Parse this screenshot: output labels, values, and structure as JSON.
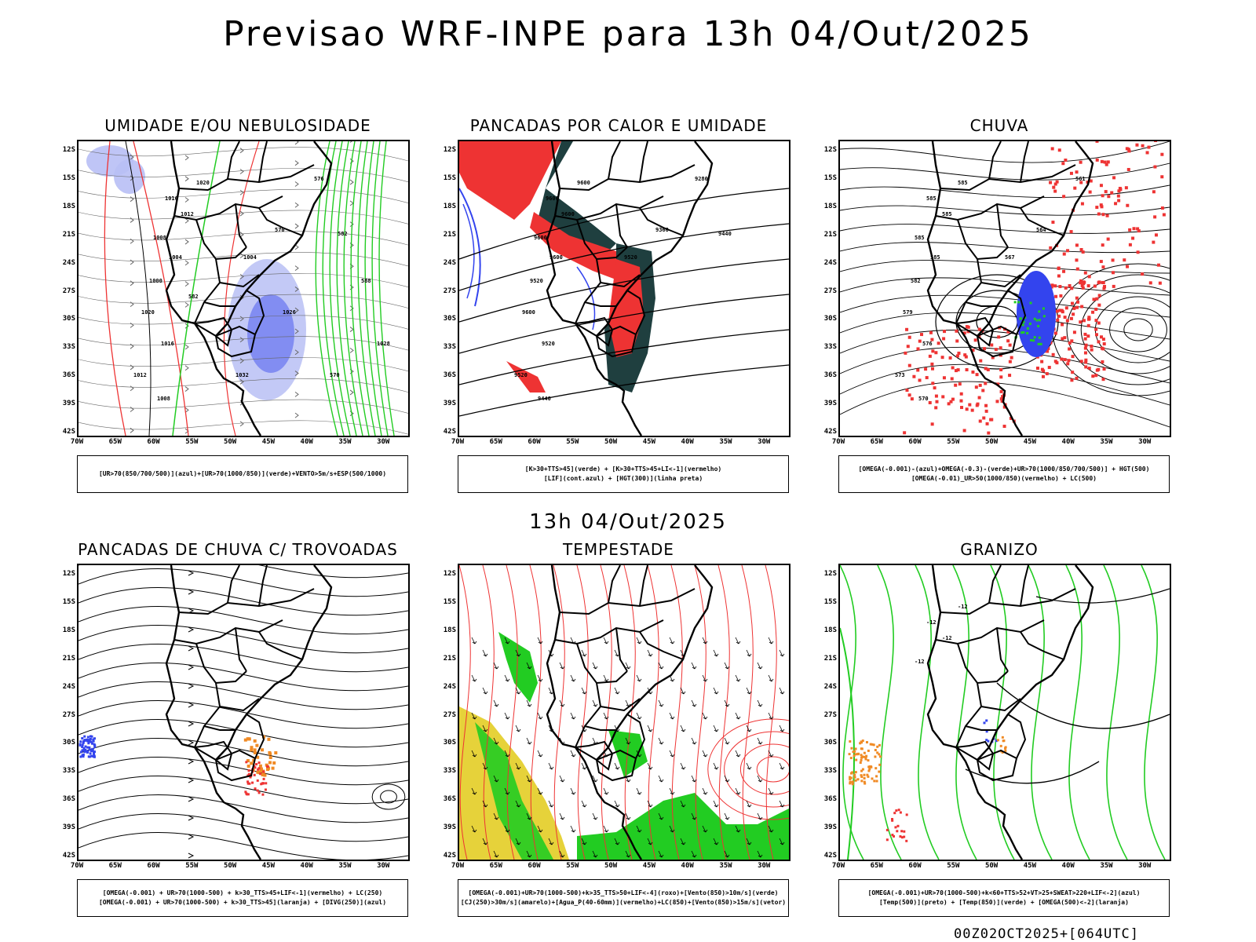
{
  "title": "Previsao WRF-INPE  para 13h 04/Out/2025",
  "mid_title": "13h 04/Out/2025",
  "footer": "00Z02OCT2025+[064UTC]",
  "lat_labels": [
    "12S",
    "15S",
    "18S",
    "21S",
    "24S",
    "27S",
    "30S",
    "33S",
    "36S",
    "39S",
    "42S"
  ],
  "lon_labels": [
    "70W",
    "65W",
    "60W",
    "55W",
    "50W",
    "45W",
    "40W",
    "35W",
    "30W"
  ],
  "panels": [
    {
      "title": "UMIDADE E/OU NEBULOSIDADE",
      "legend": [
        "[UR>70(850/700/500)](azul)+[UR>70(1000/850)](verde)+VENTO>5m/s+ESP(500/1000)"
      ],
      "contours": [
        "1020",
        "1016",
        "1012",
        "1008",
        "1004",
        "1000",
        "1020",
        "1016",
        "1012",
        "1008",
        "1004",
        "570",
        "576",
        "582",
        "588",
        "1028",
        "1026",
        "1032",
        "570",
        "582"
      ]
    },
    {
      "title": "PANCADAS POR CALOR E UMIDADE",
      "legend": [
        "[K>30+TTS>45](verde) + [K>30+TTS>45+LI<-1](vermelho)",
        "[LIF](cont.azul) + [HGT(300)](linha preta)"
      ],
      "contours": [
        "9600",
        "9600",
        "9600",
        "9600",
        "9600",
        "9520",
        "9600",
        "9520",
        "9520",
        "9440",
        "9520",
        "9360",
        "9280",
        "9440"
      ]
    },
    {
      "title": "CHUVA",
      "legend": [
        "[OMEGA(-0.001)-(azul)+OMEGA(-0.3)-(verde)+UR>70(1000/850/700/500)] + HGT(500)",
        "[OMEGA(-0.01)_UR>50(1000/850)(vermelho) + LC(500)"
      ],
      "contours": [
        "585",
        "585",
        "585",
        "585",
        "585",
        "582",
        "579",
        "576",
        "573",
        "570",
        "567",
        "564",
        "561"
      ]
    },
    {
      "title": "PANCADAS DE CHUVA C/ TROVOADAS",
      "legend": [
        "[OMEGA(-0.001) + UR>70(1000-500) + k>30_TTS>45+LIF<-1](vermelho) + LC(250)",
        "[OMEGA(-0.001) + UR>70(1000-500) + k>30_TTS>45](laranja) + [DIVG(250)](azul)"
      ],
      "contours": []
    },
    {
      "title": "TEMPESTADE",
      "legend": [
        "[OMEGA(-0.001)+UR>70(1000-500)+k>35_TTS>50+LIF<-4](roxo)+[Vento(850)>10m/s](verde)",
        "[CJ(250)>30m/s](amarelo)+[Agua_P(40-60mm)](vermelho)+LC(850)+[Vento(850)>15m/s](vetor)"
      ],
      "contours": []
    },
    {
      "title": "GRANIZO",
      "legend": [
        "[OMEGA(-0.001)+UR>70(1000-500)+k<60+TTS>52+VT>25+SWEAT>220+LIF<-2](azul)",
        "[Temp(500)](preto) + [Temp(850)](verde) + [OMEGA(500)<-2](laranja)"
      ],
      "contours": [
        "-12",
        "-12",
        "-12",
        "-12"
      ]
    }
  ],
  "colors": {
    "blue": "#3344ee",
    "lightblue": "#b8bff5",
    "green": "#22cc22",
    "red": "#ee3333",
    "teal": "#1f3f3f",
    "yellow": "#e6d23a",
    "orange": "#f08a24"
  }
}
